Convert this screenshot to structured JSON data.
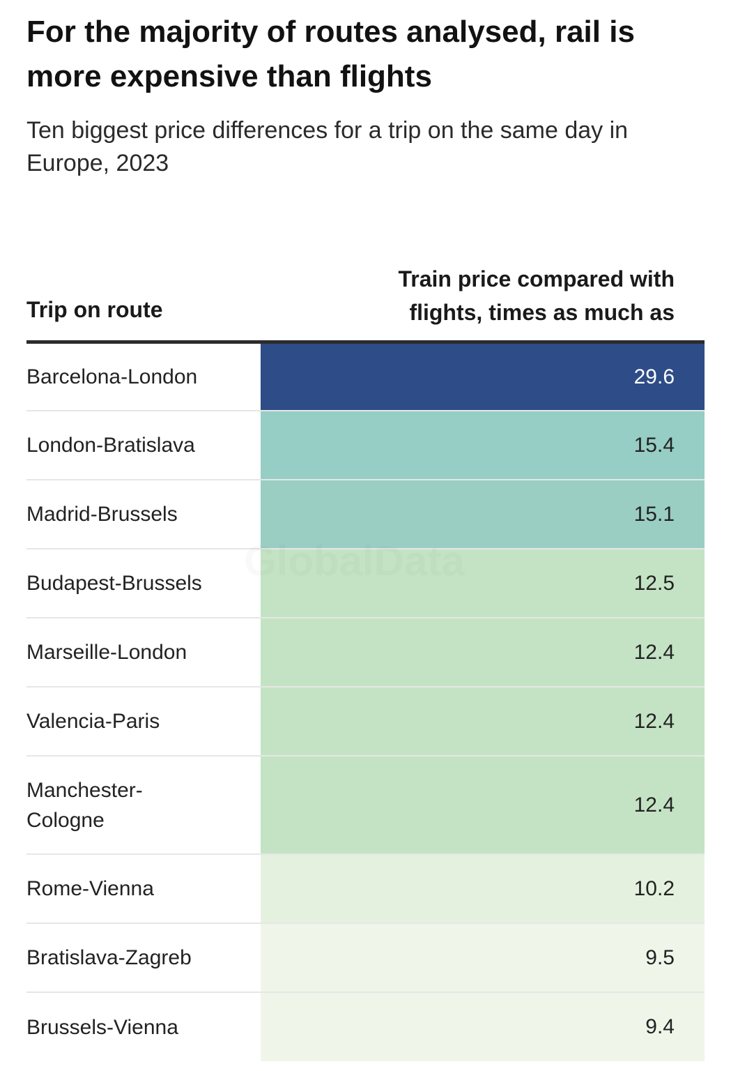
{
  "title": "For the majority of routes analysed, rail is more expensive than flights",
  "subtitle": "Ten biggest price differences for a trip on the same day in Europe, 2023",
  "watermark": "GlobalData",
  "chart_data": {
    "type": "table",
    "columns": [
      "Trip on route",
      "Train price compared with flights, times as much as"
    ],
    "rows": [
      {
        "route": "Barcelona-London",
        "value": "29.6",
        "color": "#2e4c87",
        "text_color": "#ffffff"
      },
      {
        "route": "London-Bratislava",
        "value": "15.4",
        "color": "#96cdc4",
        "text_color": "#222222"
      },
      {
        "route": "Madrid-Brussels",
        "value": "15.1",
        "color": "#9acec3",
        "text_color": "#222222"
      },
      {
        "route": "Budapest-Brussels",
        "value": "12.5",
        "color": "#c4e3c4",
        "text_color": "#222222"
      },
      {
        "route": "Marseille-London",
        "value": "12.4",
        "color": "#c4e3c4",
        "text_color": "#222222"
      },
      {
        "route": "Valencia-Paris",
        "value": "12.4",
        "color": "#c4e3c4",
        "text_color": "#222222"
      },
      {
        "route": "Manchester-Cologne",
        "value": "12.4",
        "color": "#c4e3c4",
        "text_color": "#222222"
      },
      {
        "route": "Rome-Vienna",
        "value": "10.2",
        "color": "#e4f1df",
        "text_color": "#222222"
      },
      {
        "route": "Bratislava-Zagreb",
        "value": "9.5",
        "color": "#eff6e9",
        "text_color": "#222222"
      },
      {
        "route": "Brussels-Vienna",
        "value": "9.4",
        "color": "#eff6e9",
        "text_color": "#222222"
      }
    ]
  }
}
